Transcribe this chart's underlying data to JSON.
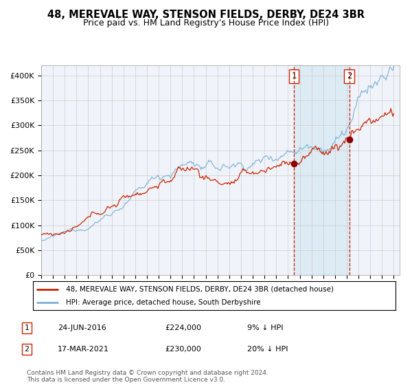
{
  "title": "48, MEREVALE WAY, STENSON FIELDS, DERBY, DE24 3BR",
  "subtitle": "Price paid vs. HM Land Registry's House Price Index (HPI)",
  "legend_line1": "48, MEREVALE WAY, STENSON FIELDS, DERBY, DE24 3BR (detached house)",
  "legend_line2": "HPI: Average price, detached house, South Derbyshire",
  "transaction1": {
    "label": "1",
    "date": "24-JUN-2016",
    "price": 224000,
    "pct": "9%",
    "dir": "↓",
    "year": 2016.5
  },
  "transaction2": {
    "label": "2",
    "date": "17-MAR-2021",
    "price": 230000,
    "pct": "20%",
    "dir": "↓",
    "year": 2021.21
  },
  "hpi_color": "#7bafd4",
  "price_color": "#cc2200",
  "dot_color": "#8b0000",
  "vline_color": "#cc2200",
  "shade_color": "#daeaf5",
  "grid_color": "#cccccc",
  "bg_color": "#f0f4fa",
  "ylim": [
    0,
    420000
  ],
  "yticks": [
    0,
    50000,
    100000,
    150000,
    200000,
    250000,
    300000,
    350000,
    400000
  ],
  "footer": "Contains HM Land Registry data © Crown copyright and database right 2024.\nThis data is licensed under the Open Government Licence v3.0.",
  "title_fontsize": 10.5,
  "subtitle_fontsize": 9,
  "axis_fontsize": 8
}
